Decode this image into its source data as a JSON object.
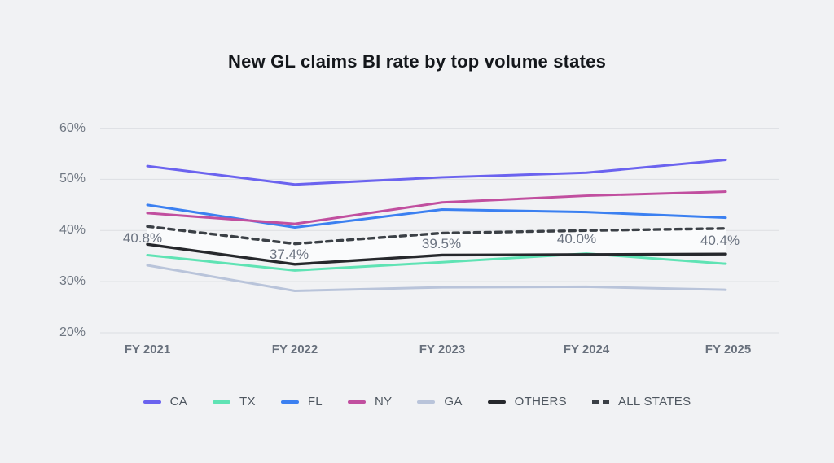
{
  "title": "New GL claims BI rate by top volume states",
  "chart_data": {
    "type": "line",
    "categories": [
      "FY 2021",
      "FY 2022",
      "FY 2023",
      "FY 2024",
      "FY 2025"
    ],
    "y_ticks": [
      {
        "value": 60,
        "label": "60%"
      },
      {
        "value": 50,
        "label": "50%"
      },
      {
        "value": 40,
        "label": "40%"
      },
      {
        "value": 30,
        "label": "30%"
      },
      {
        "value": 20,
        "label": "20%"
      }
    ],
    "ylim": [
      20,
      60
    ],
    "grid": true,
    "legend_position": "bottom",
    "series": [
      {
        "name": "CA",
        "color": "#6b63ef",
        "dashed": false,
        "values": [
          52.6,
          49.0,
          50.4,
          51.3,
          53.8
        ]
      },
      {
        "name": "TX",
        "color": "#5fe3b4",
        "dashed": false,
        "values": [
          35.2,
          32.2,
          33.8,
          35.5,
          33.5
        ]
      },
      {
        "name": "FL",
        "color": "#3b80f1",
        "dashed": false,
        "values": [
          45.0,
          40.6,
          44.1,
          43.6,
          42.5
        ]
      },
      {
        "name": "NY",
        "color": "#c14f9f",
        "dashed": false,
        "values": [
          43.4,
          41.3,
          45.5,
          46.8,
          47.6
        ]
      },
      {
        "name": "GA",
        "color": "#b9c4da",
        "dashed": false,
        "values": [
          33.2,
          28.2,
          28.9,
          29.0,
          28.4
        ]
      },
      {
        "name": "OTHERS",
        "color": "#26282c",
        "dashed": false,
        "values": [
          37.3,
          33.4,
          35.2,
          35.3,
          35.4
        ]
      },
      {
        "name": "ALL STATES",
        "color": "#3b4046",
        "dashed": true,
        "values": [
          40.8,
          37.4,
          39.5,
          40.0,
          40.4
        ],
        "point_labels": [
          "40.8%",
          "37.4%",
          "39.5%",
          "40.0%",
          "40.4%"
        ]
      }
    ],
    "highlight_band": {
      "between": [
        "ALL STATES",
        "OTHERS"
      ],
      "color": "#fafbfc"
    },
    "colors": {
      "background": "#f1f2f4",
      "gridline": "#dfe1e5",
      "axis_text": "#6e7681",
      "label_text": "#6b7380",
      "title_text": "#14171b"
    }
  }
}
